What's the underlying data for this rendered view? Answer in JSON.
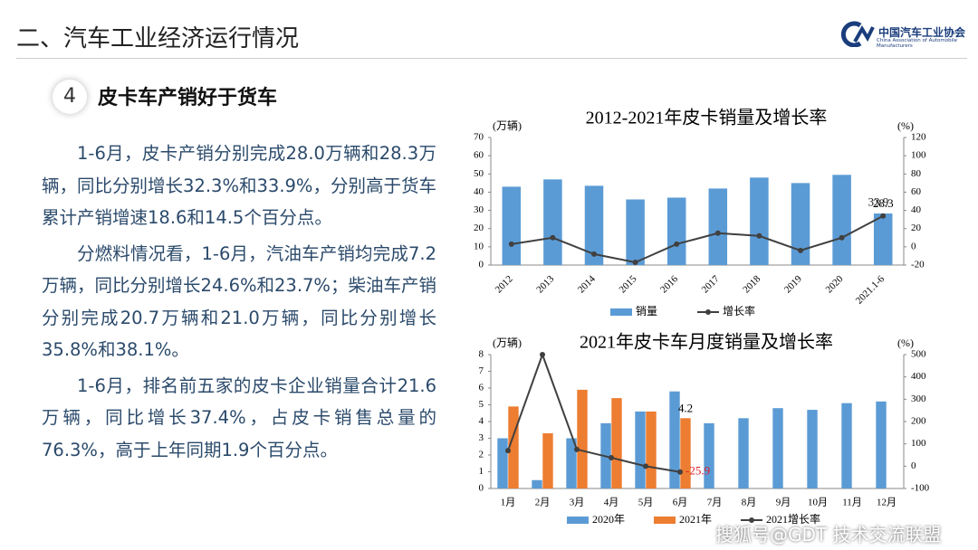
{
  "header": {
    "title": "二、汽车工业经济运行情况",
    "logo_cn": "中国汽车工业协会",
    "logo_en": "China Association of Automobile Manufacturers"
  },
  "section": {
    "number": "4",
    "title": "皮卡车产销好于货车"
  },
  "paragraphs": [
    "1-6月，皮卡产销分别完成28.0万辆和28.3万辆，同比分别增长32.3%和33.9%，分别高于货车累计产销增速18.6和14.5个百分点。",
    "分燃料情况看，1-6月，汽油车产销均完成7.2万辆，同比分别增长24.6%和23.7%；柴油车产销分别完成20.7万辆和21.0万辆，同比分别增长35.8%和38.1%。",
    "1-6月，排名前五家的皮卡企业销量合计21.6万辆，同比增长37.4%，占皮卡销售总量的76.3%，高于上年同期1.9个百分点。"
  ],
  "watermark": "搜狐号@GDT 技术交流联盟",
  "chart_data": [
    {
      "type": "bar",
      "title": "2012-2021年皮卡销量及增长率",
      "y_label": "(万辆)",
      "y2_label": "(%)",
      "categories": [
        "2012",
        "2013",
        "2014",
        "2015",
        "2016",
        "2017",
        "2018",
        "2019",
        "2020",
        "2021.1-6"
      ],
      "series": [
        {
          "name": "销量",
          "color": "#5b9bd5",
          "values": [
            43,
            47,
            43.5,
            36,
            37,
            42,
            48,
            45,
            49.5,
            28.3
          ]
        },
        {
          "name": "增长率",
          "color": "#404040",
          "type": "line",
          "axis": "y2",
          "values": [
            3,
            10,
            -8,
            -17,
            3,
            15,
            12,
            -4,
            10,
            33.9
          ]
        }
      ],
      "ylim": [
        0,
        70
      ],
      "yticks": [
        0,
        10,
        20,
        30,
        40,
        50,
        60,
        70
      ],
      "y2lim": [
        -20,
        120
      ],
      "y2ticks": [
        -20,
        0,
        20,
        40,
        60,
        80,
        100,
        120
      ],
      "rotate_x_labels": true
    },
    {
      "type": "bar",
      "title": "2021年皮卡车月度销量及增长率",
      "y_label": "(万辆)",
      "y2_label": "(%)",
      "categories": [
        "1月",
        "2月",
        "3月",
        "4月",
        "5月",
        "6月",
        "7月",
        "8月",
        "9月",
        "10月",
        "11月",
        "12月"
      ],
      "series": [
        {
          "name": "2020年",
          "color": "#5b9bd5",
          "values": [
            3.0,
            0.5,
            3.0,
            3.9,
            4.6,
            5.8,
            3.9,
            4.2,
            4.8,
            4.7,
            5.1,
            5.2
          ]
        },
        {
          "name": "2021年",
          "color": "#ed7d31",
          "values": [
            4.9,
            3.3,
            5.9,
            5.4,
            4.6,
            4.2,
            null,
            null,
            null,
            null,
            null,
            null
          ]
        },
        {
          "name": "2021增长率",
          "color": "#404040",
          "type": "line",
          "axis": "y2",
          "label_color": "#e0202a",
          "values": [
            70,
            500,
            75,
            38,
            0,
            -25.9,
            null,
            null,
            null,
            null,
            null,
            null
          ]
        }
      ],
      "ylim": [
        0,
        8
      ],
      "yticks": [
        0,
        1,
        2,
        3,
        4,
        5,
        6,
        7,
        8
      ],
      "y2lim": [
        -100,
        500
      ],
      "y2ticks": [
        -100,
        0,
        100,
        200,
        300,
        400,
        500
      ],
      "rotate_x_labels": false
    }
  ]
}
